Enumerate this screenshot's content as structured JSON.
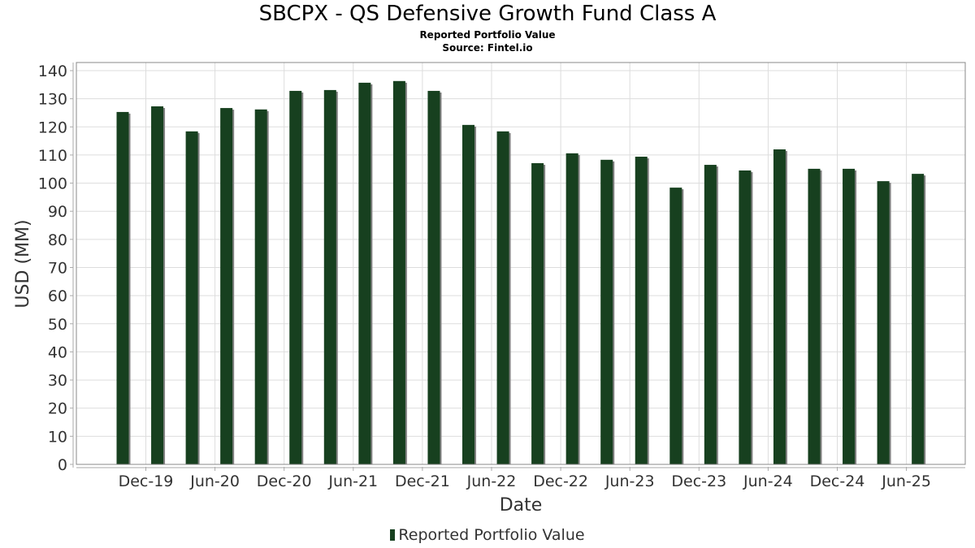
{
  "chart_data": {
    "type": "bar",
    "title": "SBCPX - QS Defensive Growth Fund Class A",
    "subtitle": "Reported Portfolio Value",
    "source": "Source: Fintel.io",
    "xlabel": "Date",
    "ylabel": "USD (MM)",
    "ylim": [
      0,
      140
    ],
    "yticks": [
      0,
      10,
      20,
      30,
      40,
      50,
      60,
      70,
      80,
      90,
      100,
      110,
      120,
      130,
      140
    ],
    "xtick_labels": [
      "Dec-19",
      "Jun-20",
      "Dec-20",
      "Jun-21",
      "Dec-21",
      "Jun-22",
      "Dec-22",
      "Jun-23",
      "Dec-23",
      "Jun-24",
      "Dec-24",
      "Jun-25"
    ],
    "grid": true,
    "legend_position": "bottom-center",
    "series": [
      {
        "name": "Reported Portfolio Value",
        "color": "#17401f",
        "shadow_color": "#808080",
        "values": [
          125.3,
          127.3,
          118.4,
          126.7,
          126.2,
          132.8,
          133.1,
          135.7,
          136.3,
          132.8,
          120.7,
          118.4,
          107.1,
          110.6,
          108.3,
          109.4,
          98.4,
          106.5,
          104.5,
          112.0,
          105.1,
          105.1,
          100.7,
          103.3
        ]
      }
    ]
  }
}
